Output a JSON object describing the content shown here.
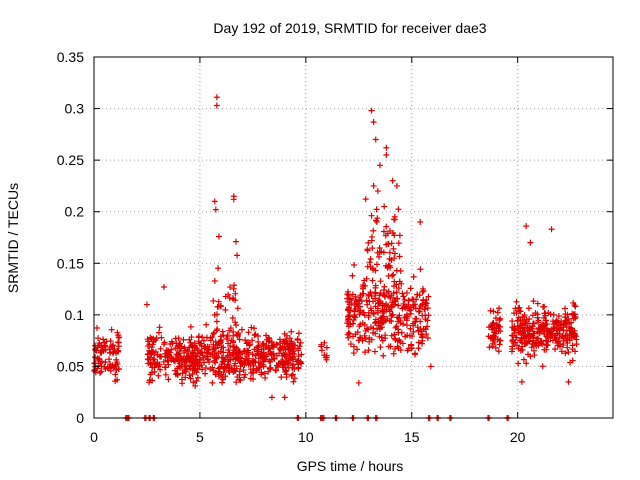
{
  "chart_data": {
    "type": "scatter",
    "title": "Day 192 of 2019, SRMTID for receiver dae3",
    "xlabel": "GPS time / hours",
    "ylabel": "SRMTID / TECUs",
    "xlim": [
      0,
      24.5
    ],
    "ylim": [
      0,
      0.35
    ],
    "x_ticks": [
      0,
      5,
      10,
      15,
      20
    ],
    "x_tick_labels": [
      "0",
      "5",
      "10",
      "15",
      "20"
    ],
    "y_ticks": [
      0,
      0.05,
      0.1,
      0.15,
      0.2,
      0.25,
      0.3,
      0.35
    ],
    "y_tick_labels": [
      "0",
      "0.05",
      "0.1",
      "0.15",
      "0.2",
      "0.25",
      "0.3",
      "0.35"
    ],
    "grid": true,
    "marker": "+",
    "color": "#e00000",
    "seed": 192,
    "clusters": [
      {
        "x0": 0.0,
        "x1": 1.2,
        "mean": 0.06,
        "spread": 0.02,
        "count": 90
      },
      {
        "x0": 2.5,
        "x1": 9.8,
        "mean": 0.06,
        "spread": 0.022,
        "count": 620
      },
      {
        "x0": 5.6,
        "x1": 6.8,
        "mean": 0.1,
        "spread": 0.04,
        "count": 40
      },
      {
        "x0": 10.7,
        "x1": 11.0,
        "mean": 0.065,
        "spread": 0.01,
        "count": 10
      },
      {
        "x0": 11.9,
        "x1": 15.8,
        "mean": 0.1,
        "spread": 0.035,
        "count": 330
      },
      {
        "x0": 12.8,
        "x1": 14.5,
        "mean": 0.16,
        "spread": 0.05,
        "count": 70
      },
      {
        "x0": 18.6,
        "x1": 19.2,
        "mean": 0.085,
        "spread": 0.02,
        "count": 45
      },
      {
        "x0": 19.7,
        "x1": 22.8,
        "mean": 0.085,
        "spread": 0.025,
        "count": 300
      }
    ],
    "outliers": [
      {
        "x": 5.8,
        "y": 0.311
      },
      {
        "x": 5.8,
        "y": 0.303
      },
      {
        "x": 5.7,
        "y": 0.21
      },
      {
        "x": 5.75,
        "y": 0.202
      },
      {
        "x": 6.6,
        "y": 0.215
      },
      {
        "x": 6.6,
        "y": 0.212
      },
      {
        "x": 5.9,
        "y": 0.176
      },
      {
        "x": 6.7,
        "y": 0.171
      },
      {
        "x": 3.3,
        "y": 0.127
      },
      {
        "x": 2.5,
        "y": 0.11
      },
      {
        "x": 13.1,
        "y": 0.298
      },
      {
        "x": 13.2,
        "y": 0.287
      },
      {
        "x": 13.3,
        "y": 0.27
      },
      {
        "x": 13.8,
        "y": 0.262
      },
      {
        "x": 13.8,
        "y": 0.255
      },
      {
        "x": 13.5,
        "y": 0.245
      },
      {
        "x": 13.2,
        "y": 0.225
      },
      {
        "x": 13.4,
        "y": 0.22
      },
      {
        "x": 14.1,
        "y": 0.23
      },
      {
        "x": 14.3,
        "y": 0.225
      },
      {
        "x": 13.7,
        "y": 0.205
      },
      {
        "x": 14.2,
        "y": 0.195
      },
      {
        "x": 15.4,
        "y": 0.19
      },
      {
        "x": 21.6,
        "y": 0.183
      },
      {
        "x": 20.4,
        "y": 0.186
      },
      {
        "x": 20.6,
        "y": 0.17
      },
      {
        "x": 15.9,
        "y": 0.05
      },
      {
        "x": 12.5,
        "y": 0.034
      },
      {
        "x": 9.0,
        "y": 0.02
      },
      {
        "x": 8.4,
        "y": 0.02
      },
      {
        "x": 20.2,
        "y": 0.035
      },
      {
        "x": 22.4,
        "y": 0.035
      }
    ],
    "zero_points": [
      1.5,
      1.6,
      2.4,
      2.6,
      2.8,
      9.6,
      10.7,
      10.8,
      11.4,
      12.2,
      12.9,
      13.3,
      15.8,
      16.2,
      16.8,
      18.6,
      19.5
    ]
  }
}
